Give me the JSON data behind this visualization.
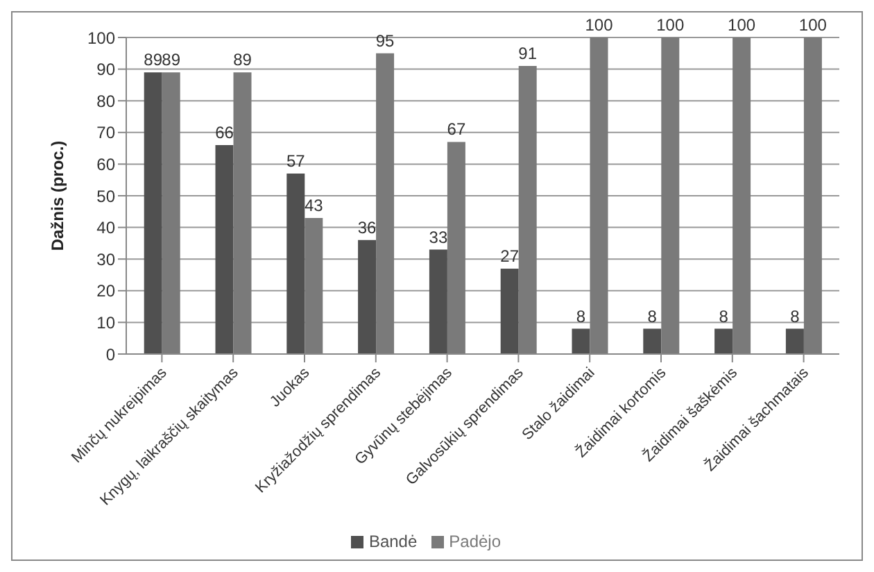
{
  "chart_data": {
    "type": "bar",
    "ylabel": "Dažnis (proc.)",
    "categories": [
      "Minčų nukreipimas",
      "Knygų, laikraščių skaitymas",
      "Juokas",
      "Kryžiažodžių sprendimas",
      "Gyvūnų stebėjimas",
      "Galvosūkių sprendimas",
      "Stalo žaidimai",
      "Žaidimai kortomis",
      "Žaidimai šaškėmis",
      "Žaidimai šachmatais"
    ],
    "series": [
      {
        "name": "Bandė",
        "color": "#505050",
        "values": [
          89,
          66,
          57,
          36,
          33,
          27,
          8,
          8,
          8,
          8
        ]
      },
      {
        "name": "Padėjo",
        "color": "#7a7a7a",
        "values": [
          89,
          89,
          43,
          95,
          67,
          91,
          100,
          100,
          100,
          100
        ]
      }
    ],
    "ylim": [
      0,
      100
    ],
    "yticks": [
      0,
      10,
      20,
      30,
      40,
      50,
      60,
      70,
      80,
      90,
      100
    ],
    "grid": "y",
    "legend": "bottom",
    "data_labels": true
  }
}
